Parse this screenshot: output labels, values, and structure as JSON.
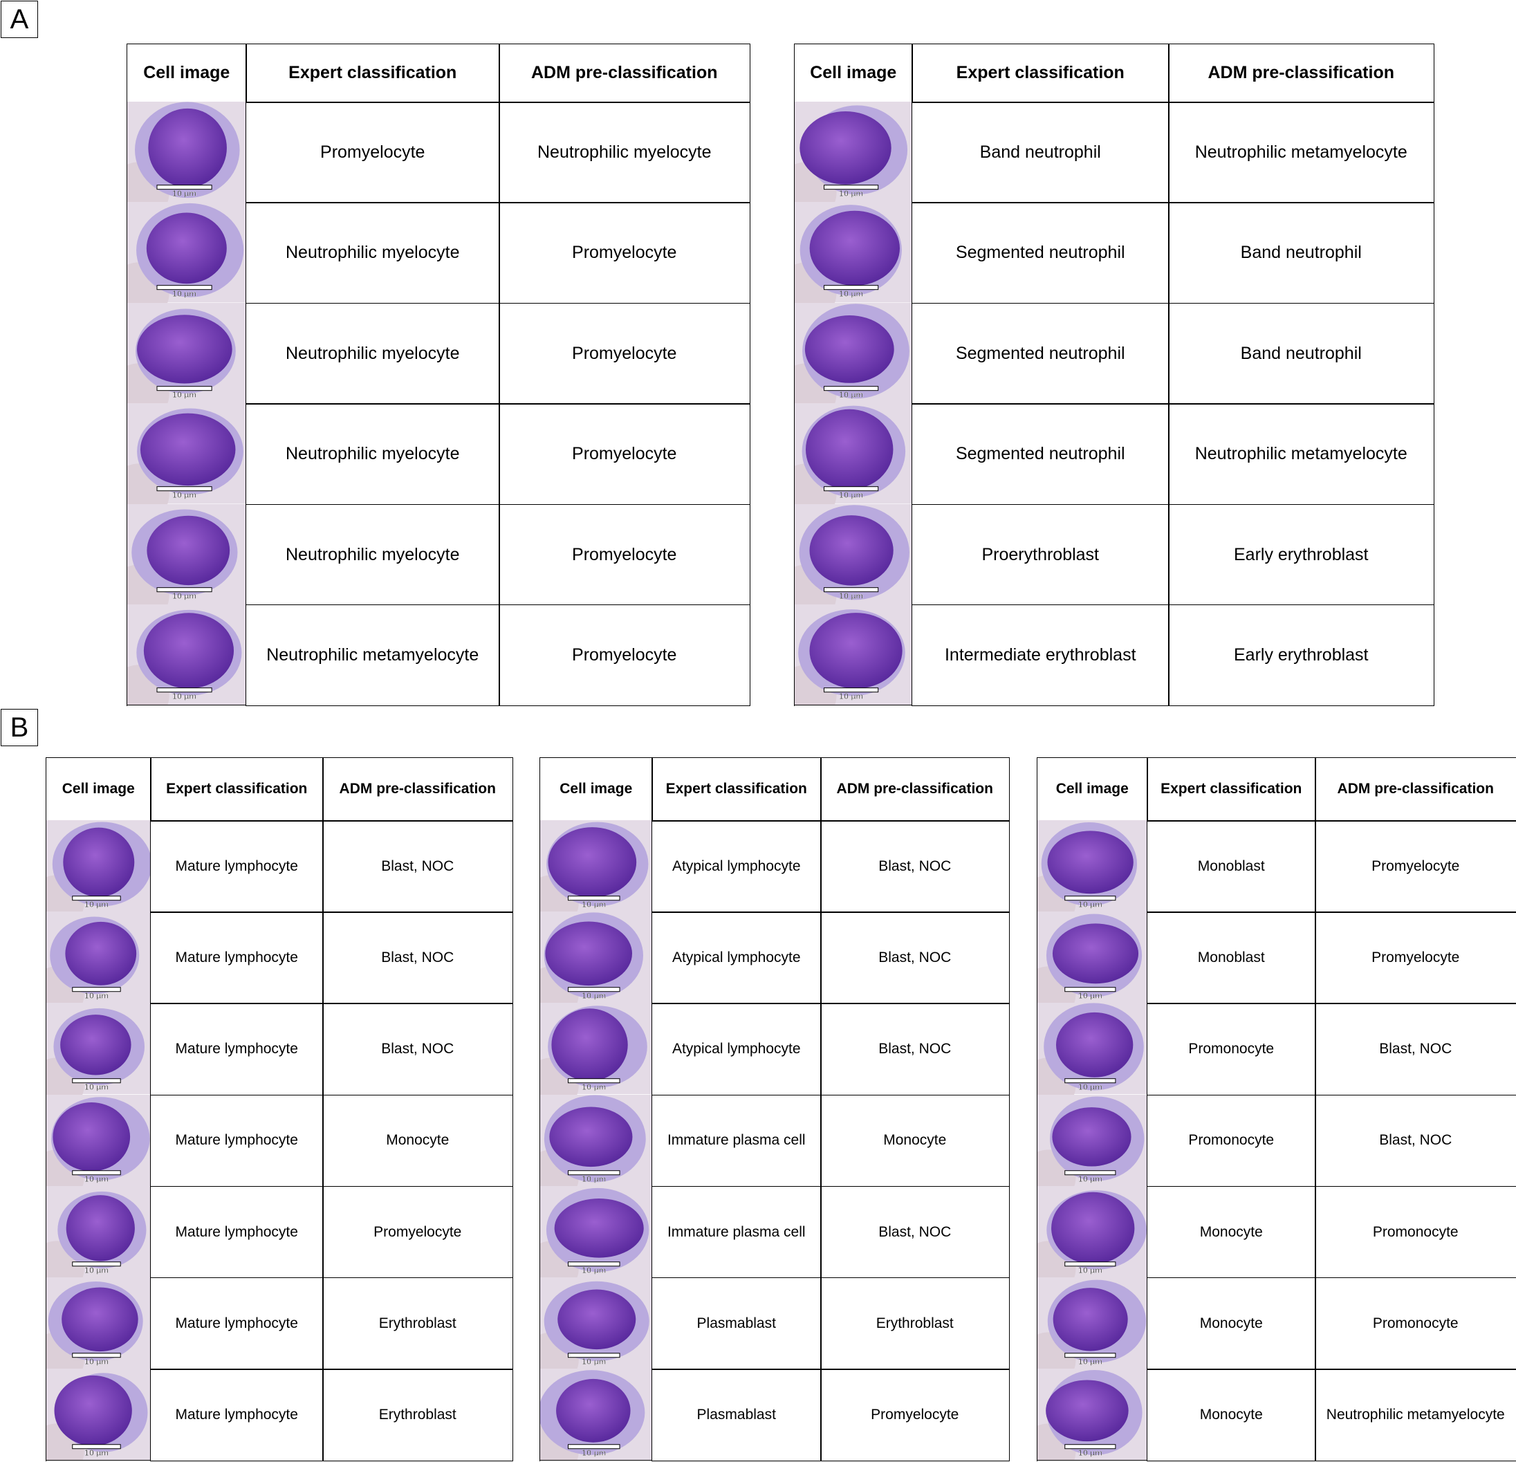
{
  "panels": [
    {
      "label": "A",
      "tables": [
        {
          "header": [
            "Cell image",
            "Expert classification",
            "ADM pre-classification"
          ],
          "rows": [
            [
              "Promyelocyte",
              "Neutrophilic myelocyte"
            ],
            [
              "Neutrophilic myelocyte",
              "Promyelocyte"
            ],
            [
              "Neutrophilic myelocyte",
              "Promyelocyte"
            ],
            [
              "Neutrophilic myelocyte",
              "Promyelocyte"
            ],
            [
              "Neutrophilic myelocyte",
              "Promyelocyte"
            ],
            [
              "Neutrophilic metamyelocyte",
              "Promyelocyte"
            ]
          ]
        },
        {
          "header": [
            "Cell image",
            "Expert classification",
            "ADM pre-classification"
          ],
          "rows": [
            [
              "Band neutrophil",
              "Neutrophilic metamyelocyte"
            ],
            [
              "Segmented neutrophil",
              "Band neutrophil"
            ],
            [
              "Segmented neutrophil",
              "Band neutrophil"
            ],
            [
              "Segmented neutrophil",
              "Neutrophilic metamyelocyte"
            ],
            [
              "Proerythroblast",
              "Early erythroblast"
            ],
            [
              "Intermediate erythroblast",
              "Early erythroblast"
            ]
          ]
        }
      ]
    },
    {
      "label": "B",
      "tables": [
        {
          "header": [
            "Cell image",
            "Expert classification",
            "ADM pre-classification"
          ],
          "rows": [
            [
              "Mature lymphocyte",
              "Blast, NOC"
            ],
            [
              "Mature lymphocyte",
              "Blast, NOC"
            ],
            [
              "Mature lymphocyte",
              "Blast, NOC"
            ],
            [
              "Mature lymphocyte",
              "Monocyte"
            ],
            [
              "Mature lymphocyte",
              "Promyelocyte"
            ],
            [
              "Mature lymphocyte",
              "Erythroblast"
            ],
            [
              "Mature lymphocyte",
              "Erythroblast"
            ]
          ]
        },
        {
          "header": [
            "Cell image",
            "Expert classification",
            "ADM pre-classification"
          ],
          "rows": [
            [
              "Atypical lymphocyte",
              "Blast, NOC"
            ],
            [
              "Atypical lymphocyte",
              "Blast, NOC"
            ],
            [
              "Atypical lymphocyte",
              "Blast, NOC"
            ],
            [
              "Immature plasma cell",
              "Monocyte"
            ],
            [
              "Immature plasma cell",
              "Blast, NOC"
            ],
            [
              "Plasmablast",
              "Erythroblast"
            ],
            [
              "Plasmablast",
              "Promyelocyte"
            ]
          ]
        },
        {
          "header": [
            "Cell image",
            "Expert classification",
            "ADM pre-classification"
          ],
          "rows": [
            [
              "Monoblast",
              "Promyelocyte"
            ],
            [
              "Monoblast",
              "Promyelocyte"
            ],
            [
              "Promonocyte",
              "Blast, NOC"
            ],
            [
              "Promonocyte",
              "Blast, NOC"
            ],
            [
              "Monocyte",
              "Promonocyte"
            ],
            [
              "Monocyte",
              "Promonocyte"
            ],
            [
              "Monocyte",
              "Neutrophilic metamyelocyte"
            ]
          ]
        }
      ]
    }
  ],
  "scale_bar_label": "10 µm"
}
